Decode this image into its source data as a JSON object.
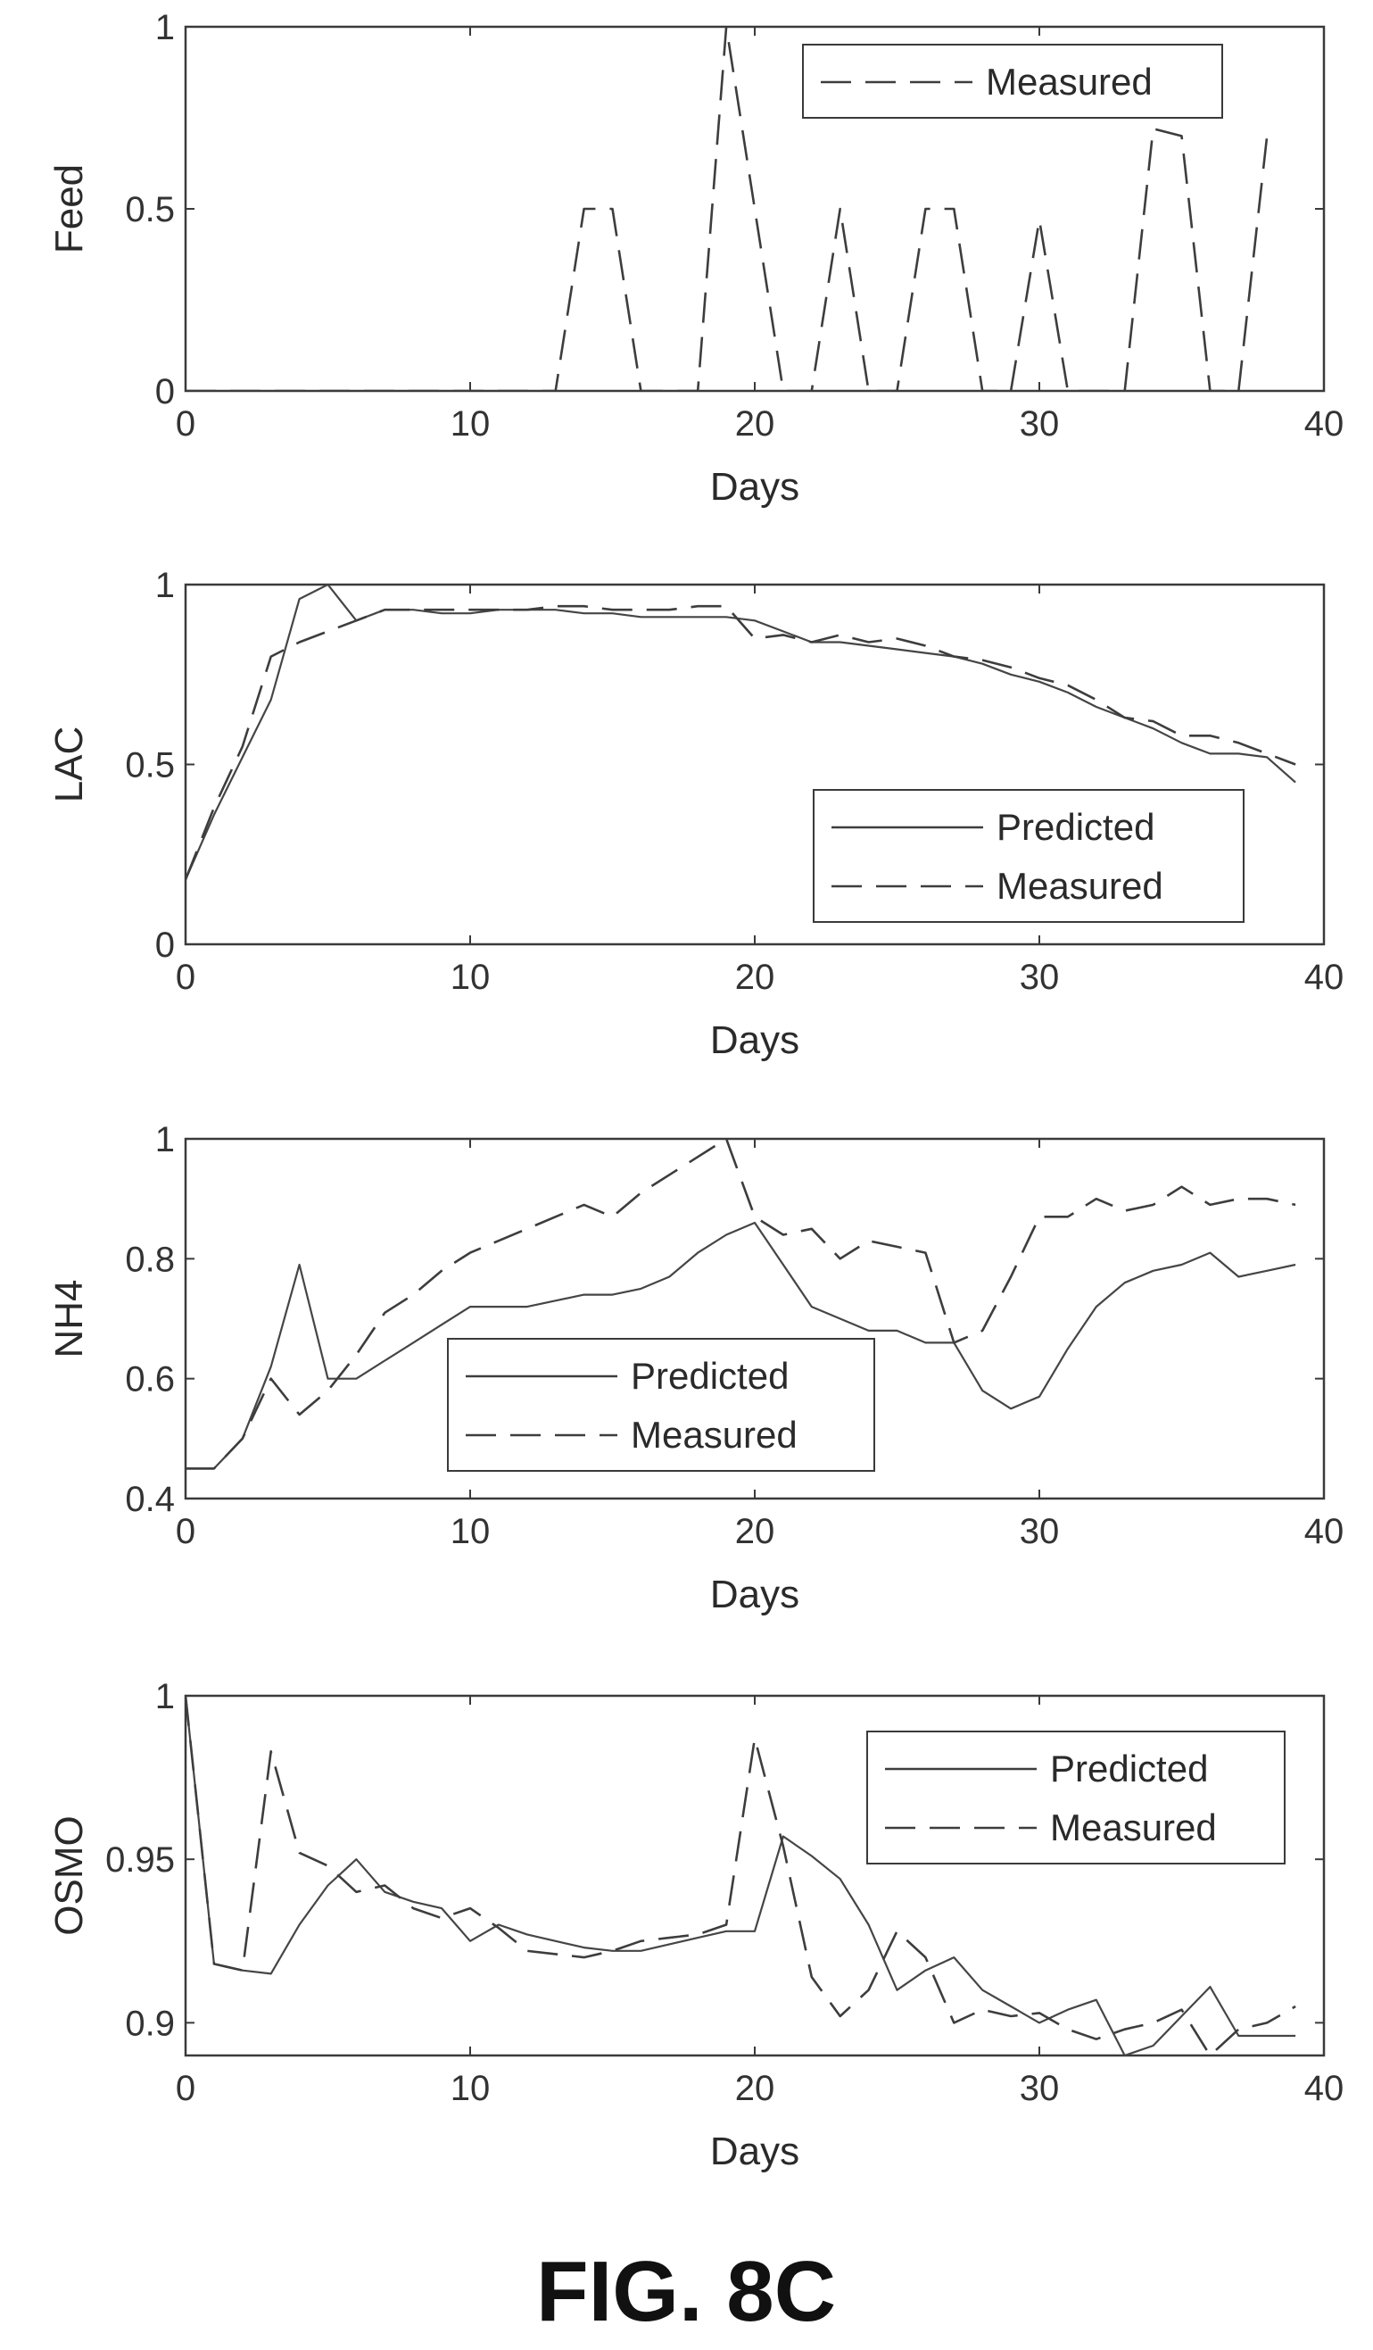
{
  "figure_caption": "FIG. 8C",
  "chart_data": [
    {
      "type": "line",
      "ylabel": "Feed",
      "xlabel": "Days",
      "xlim": [
        0,
        40
      ],
      "ylim": [
        0,
        1
      ],
      "xticks": [
        "0",
        "10",
        "20",
        "30",
        "40"
      ],
      "yticks": [
        "0",
        "0.5",
        "1"
      ],
      "grid": false,
      "legend": "top-right",
      "series": [
        {
          "name": "Measured",
          "style": "dashed",
          "x": [
            0,
            13,
            14,
            15,
            16,
            18,
            19,
            20,
            21,
            22,
            23,
            24,
            25,
            26,
            27,
            28,
            29,
            30,
            31,
            33,
            34,
            35,
            36,
            37,
            38
          ],
          "y": [
            0,
            0,
            0.5,
            0.5,
            0,
            0,
            1,
            0.5,
            0,
            0,
            0.5,
            0,
            0,
            0.5,
            0.5,
            0,
            0,
            0.47,
            0,
            0,
            0.72,
            0.7,
            0,
            0,
            0.7
          ]
        }
      ]
    },
    {
      "type": "line",
      "ylabel": "LAC",
      "xlabel": "Days",
      "xlim": [
        0,
        40
      ],
      "ylim": [
        0,
        1
      ],
      "xticks": [
        "0",
        "10",
        "20",
        "30",
        "40"
      ],
      "yticks": [
        "0",
        "0.5",
        "1"
      ],
      "grid": false,
      "legend": "bottom-right",
      "series": [
        {
          "name": "Predicted",
          "style": "solid",
          "x": [
            0,
            1,
            2,
            3,
            4,
            5,
            6,
            7,
            8,
            9,
            10,
            11,
            12,
            13,
            14,
            15,
            16,
            17,
            18,
            19,
            20,
            21,
            22,
            23,
            24,
            25,
            26,
            27,
            28,
            29,
            30,
            31,
            32,
            33,
            34,
            35,
            36,
            37,
            38,
            39
          ],
          "y": [
            0.18,
            0.36,
            0.52,
            0.68,
            0.96,
            1.0,
            0.9,
            0.93,
            0.93,
            0.92,
            0.92,
            0.93,
            0.93,
            0.93,
            0.92,
            0.92,
            0.91,
            0.91,
            0.91,
            0.91,
            0.9,
            0.87,
            0.84,
            0.84,
            0.83,
            0.82,
            0.81,
            0.8,
            0.78,
            0.75,
            0.73,
            0.7,
            0.66,
            0.63,
            0.6,
            0.56,
            0.53,
            0.53,
            0.52,
            0.45
          ]
        },
        {
          "name": "Measured",
          "style": "dashed",
          "x": [
            0,
            1,
            2,
            3,
            4,
            5,
            6,
            7,
            8,
            9,
            10,
            11,
            12,
            13,
            14,
            15,
            16,
            17,
            18,
            19,
            20,
            21,
            22,
            23,
            24,
            25,
            26,
            27,
            28,
            29,
            30,
            31,
            32,
            33,
            34,
            35,
            36,
            37,
            38,
            39
          ],
          "y": [
            0.18,
            0.38,
            0.55,
            0.8,
            0.84,
            0.87,
            0.9,
            0.93,
            0.93,
            0.93,
            0.93,
            0.93,
            0.93,
            0.94,
            0.94,
            0.93,
            0.93,
            0.93,
            0.94,
            0.94,
            0.85,
            0.86,
            0.84,
            0.86,
            0.84,
            0.85,
            0.83,
            0.8,
            0.79,
            0.77,
            0.74,
            0.72,
            0.68,
            0.63,
            0.62,
            0.58,
            0.58,
            0.56,
            0.53,
            0.5
          ]
        }
      ]
    },
    {
      "type": "line",
      "ylabel": "NH4",
      "xlabel": "Days",
      "xlim": [
        0,
        40
      ],
      "ylim": [
        0.4,
        1
      ],
      "xticks": [
        "0",
        "10",
        "20",
        "30",
        "40"
      ],
      "yticks": [
        "0.4",
        "0.6",
        "0.8",
        "1"
      ],
      "grid": false,
      "legend": "bottom-left",
      "series": [
        {
          "name": "Predicted",
          "style": "solid",
          "x": [
            0,
            1,
            2,
            3,
            4,
            5,
            6,
            7,
            8,
            9,
            10,
            11,
            12,
            13,
            14,
            15,
            16,
            17,
            18,
            19,
            20,
            21,
            22,
            23,
            24,
            25,
            26,
            27,
            28,
            29,
            30,
            31,
            32,
            33,
            34,
            35,
            36,
            37,
            38,
            39
          ],
          "y": [
            0.45,
            0.45,
            0.5,
            0.62,
            0.79,
            0.6,
            0.6,
            0.63,
            0.66,
            0.69,
            0.72,
            0.72,
            0.72,
            0.73,
            0.74,
            0.74,
            0.75,
            0.77,
            0.81,
            0.84,
            0.86,
            0.79,
            0.72,
            0.7,
            0.68,
            0.68,
            0.66,
            0.66,
            0.58,
            0.55,
            0.57,
            0.65,
            0.72,
            0.76,
            0.78,
            0.79,
            0.81,
            0.77,
            0.78,
            0.79
          ]
        },
        {
          "name": "Measured",
          "style": "dashed",
          "x": [
            0,
            1,
            2,
            3,
            4,
            5,
            6,
            7,
            8,
            9,
            10,
            11,
            12,
            13,
            14,
            15,
            16,
            17,
            18,
            19,
            20,
            21,
            22,
            23,
            24,
            25,
            26,
            27,
            28,
            29,
            30,
            31,
            32,
            33,
            34,
            35,
            36,
            37,
            38,
            39
          ],
          "y": [
            0.45,
            0.45,
            0.5,
            0.6,
            0.54,
            0.58,
            0.64,
            0.71,
            0.74,
            0.78,
            0.81,
            0.83,
            0.85,
            0.87,
            0.89,
            0.87,
            0.91,
            0.94,
            0.97,
            1.0,
            0.87,
            0.84,
            0.85,
            0.8,
            0.83,
            0.82,
            0.81,
            0.66,
            0.68,
            0.77,
            0.87,
            0.87,
            0.9,
            0.88,
            0.89,
            0.92,
            0.89,
            0.9,
            0.9,
            0.89
          ]
        }
      ]
    },
    {
      "type": "line",
      "ylabel": "OSMO",
      "xlabel": "Days",
      "xlim": [
        0,
        40
      ],
      "ylim": [
        0.89,
        1
      ],
      "xticks": [
        "0",
        "10",
        "20",
        "30",
        "40"
      ],
      "yticks": [
        "0.9",
        "0.95",
        "1"
      ],
      "grid": false,
      "legend": "top-right",
      "series": [
        {
          "name": "Predicted",
          "style": "solid",
          "x": [
            0,
            1,
            2,
            3,
            4,
            5,
            6,
            7,
            8,
            9,
            10,
            11,
            12,
            13,
            14,
            15,
            16,
            17,
            18,
            19,
            20,
            21,
            22,
            23,
            24,
            25,
            26,
            27,
            28,
            29,
            30,
            31,
            32,
            33,
            34,
            35,
            36,
            37,
            38,
            39
          ],
          "y": [
            1.0,
            0.918,
            0.916,
            0.915,
            0.93,
            0.942,
            0.95,
            0.94,
            0.937,
            0.935,
            0.925,
            0.93,
            0.927,
            0.925,
            0.923,
            0.922,
            0.922,
            0.924,
            0.926,
            0.928,
            0.928,
            0.957,
            0.951,
            0.944,
            0.93,
            0.91,
            0.916,
            0.92,
            0.91,
            0.905,
            0.9,
            0.904,
            0.907,
            0.89,
            0.893,
            0.902,
            0.911,
            0.896,
            0.896,
            0.896
          ]
        },
        {
          "name": "Measured",
          "style": "dashed",
          "x": [
            0,
            1,
            2,
            3,
            4,
            5,
            6,
            7,
            8,
            9,
            10,
            11,
            12,
            13,
            14,
            15,
            16,
            17,
            18,
            19,
            20,
            21,
            22,
            23,
            24,
            25,
            26,
            27,
            28,
            29,
            30,
            31,
            32,
            33,
            34,
            35,
            36,
            37,
            38,
            39
          ],
          "y": [
            1.0,
            0.918,
            0.916,
            0.983,
            0.952,
            0.948,
            0.94,
            0.942,
            0.935,
            0.932,
            0.935,
            0.929,
            0.922,
            0.921,
            0.92,
            0.922,
            0.925,
            0.926,
            0.927,
            0.93,
            0.987,
            0.954,
            0.914,
            0.902,
            0.91,
            0.928,
            0.92,
            0.9,
            0.904,
            0.902,
            0.903,
            0.898,
            0.895,
            0.898,
            0.9,
            0.904,
            0.89,
            0.898,
            0.9,
            0.905
          ]
        }
      ]
    }
  ]
}
